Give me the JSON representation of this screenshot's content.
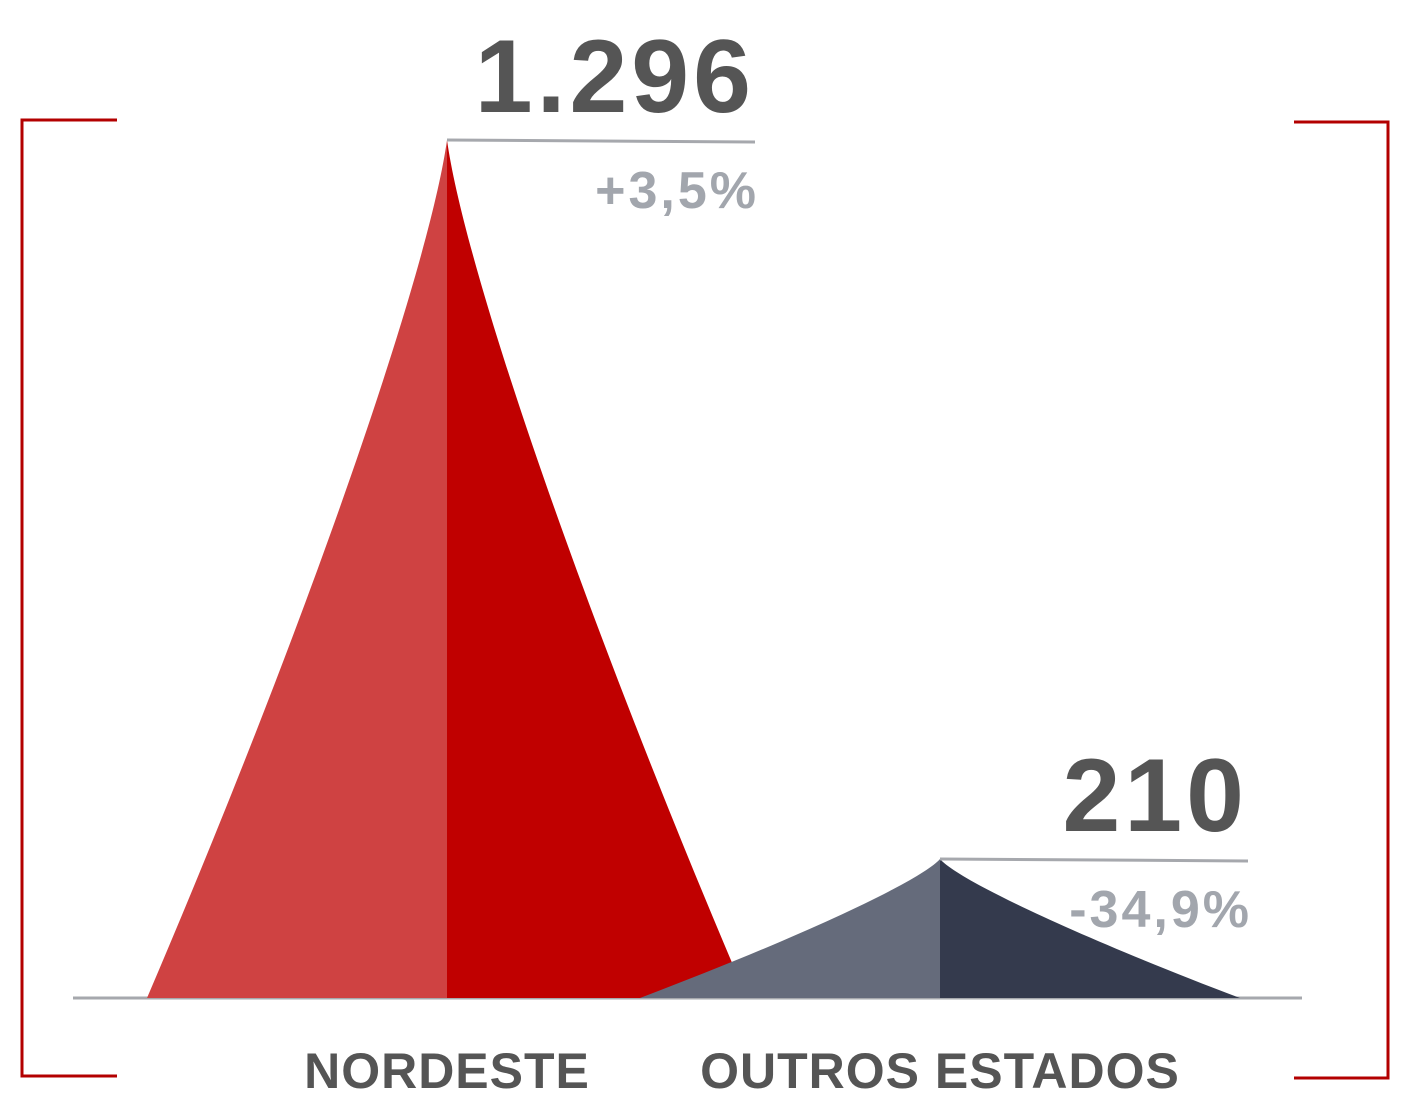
{
  "chart_data": {
    "type": "peak",
    "categories": [
      "NORDESTE",
      "OUTROS ESTADOS"
    ],
    "values": [
      1296,
      210
    ],
    "value_labels": [
      "1.296",
      "210"
    ],
    "change_labels": [
      "+3,5%",
      "-34,9%"
    ],
    "colors": [
      [
        "#cf4242",
        "#c00000"
      ],
      [
        "#656b7b",
        "#343a4d"
      ]
    ]
  }
}
